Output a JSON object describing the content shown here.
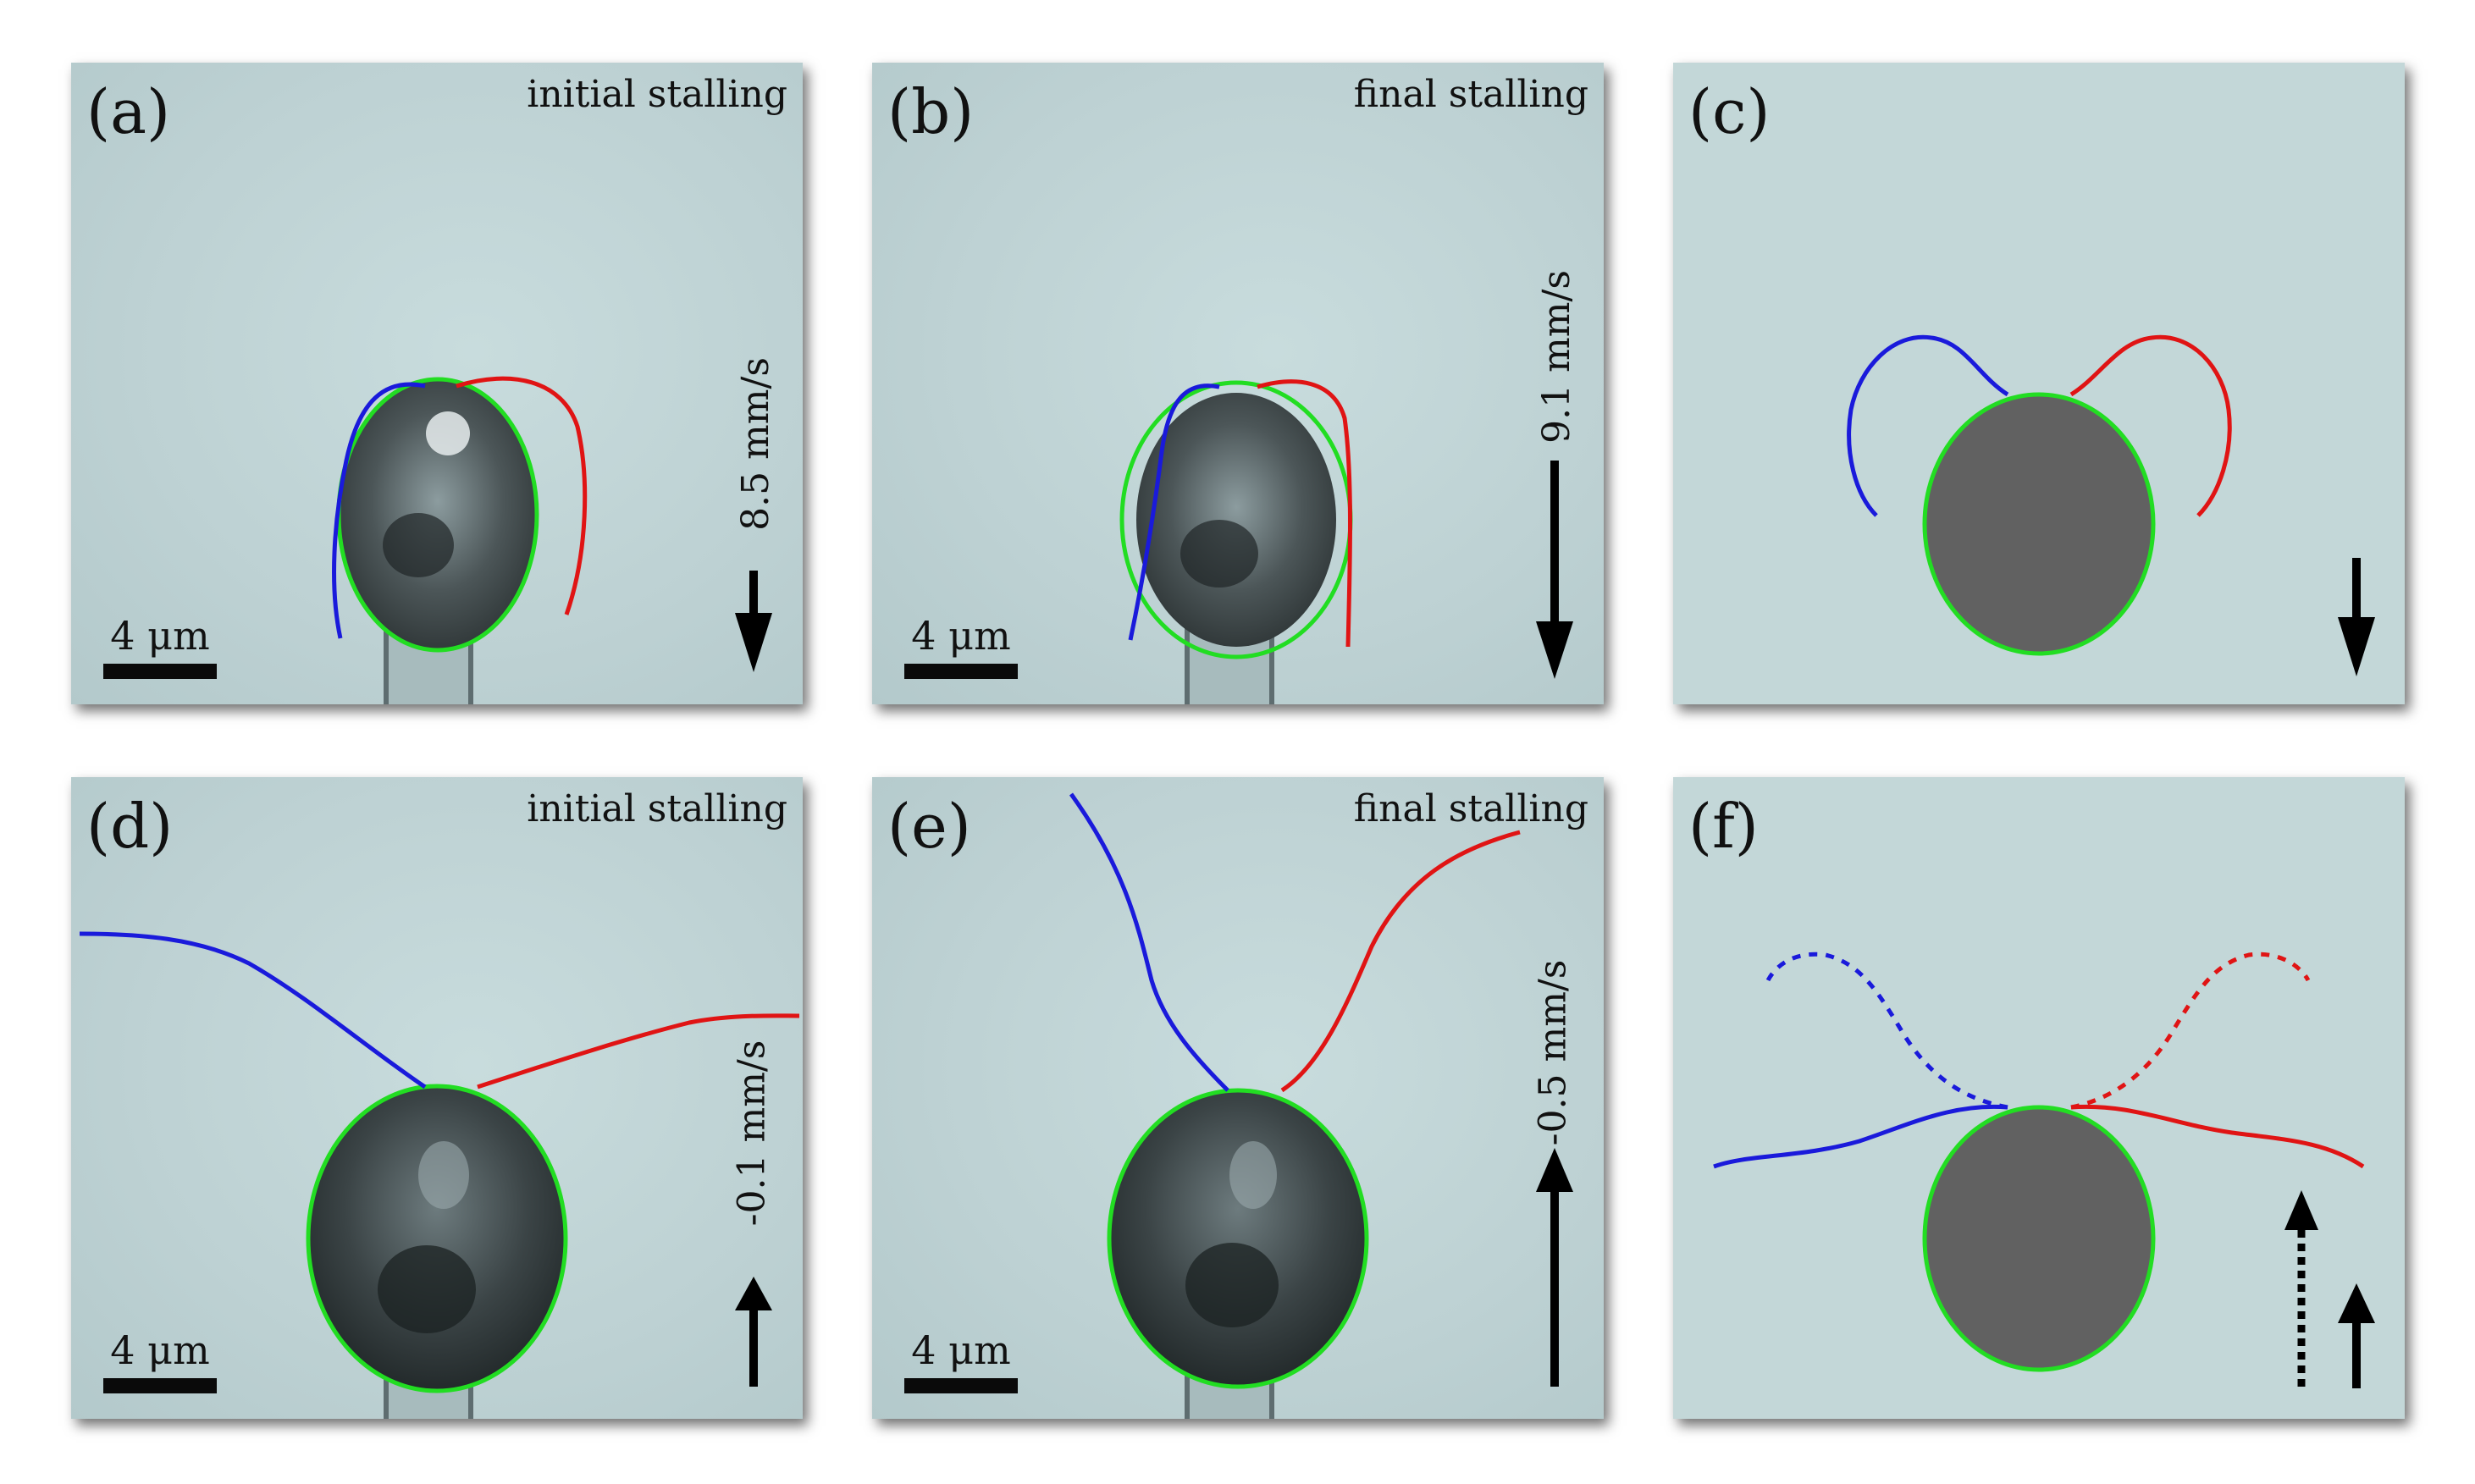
{
  "panels": [
    {
      "label": "(a)",
      "caption": "initial stalling",
      "scale": "4 μm",
      "speed": "8.5 mm/s"
    },
    {
      "label": "(b)",
      "caption": "final stalling",
      "scale": "4 μm",
      "speed": "9.1 mm/s"
    },
    {
      "label": "(c)"
    },
    {
      "label": "(d)",
      "caption": "initial stalling",
      "scale": "4 μm",
      "speed": "-0.1 mm/s"
    },
    {
      "label": "(e)",
      "caption": "final stalling",
      "scale": "4 μm",
      "speed": "-0.5 mm/s"
    },
    {
      "label": "(f)"
    }
  ],
  "colors": {
    "background": "#c3d7d8",
    "left_flagellum": "#1a1adb",
    "right_flagellum": "#e01414",
    "cell_outline": "#22dd22",
    "cell_body_schematic": "#616161",
    "arrow": "#000000"
  }
}
